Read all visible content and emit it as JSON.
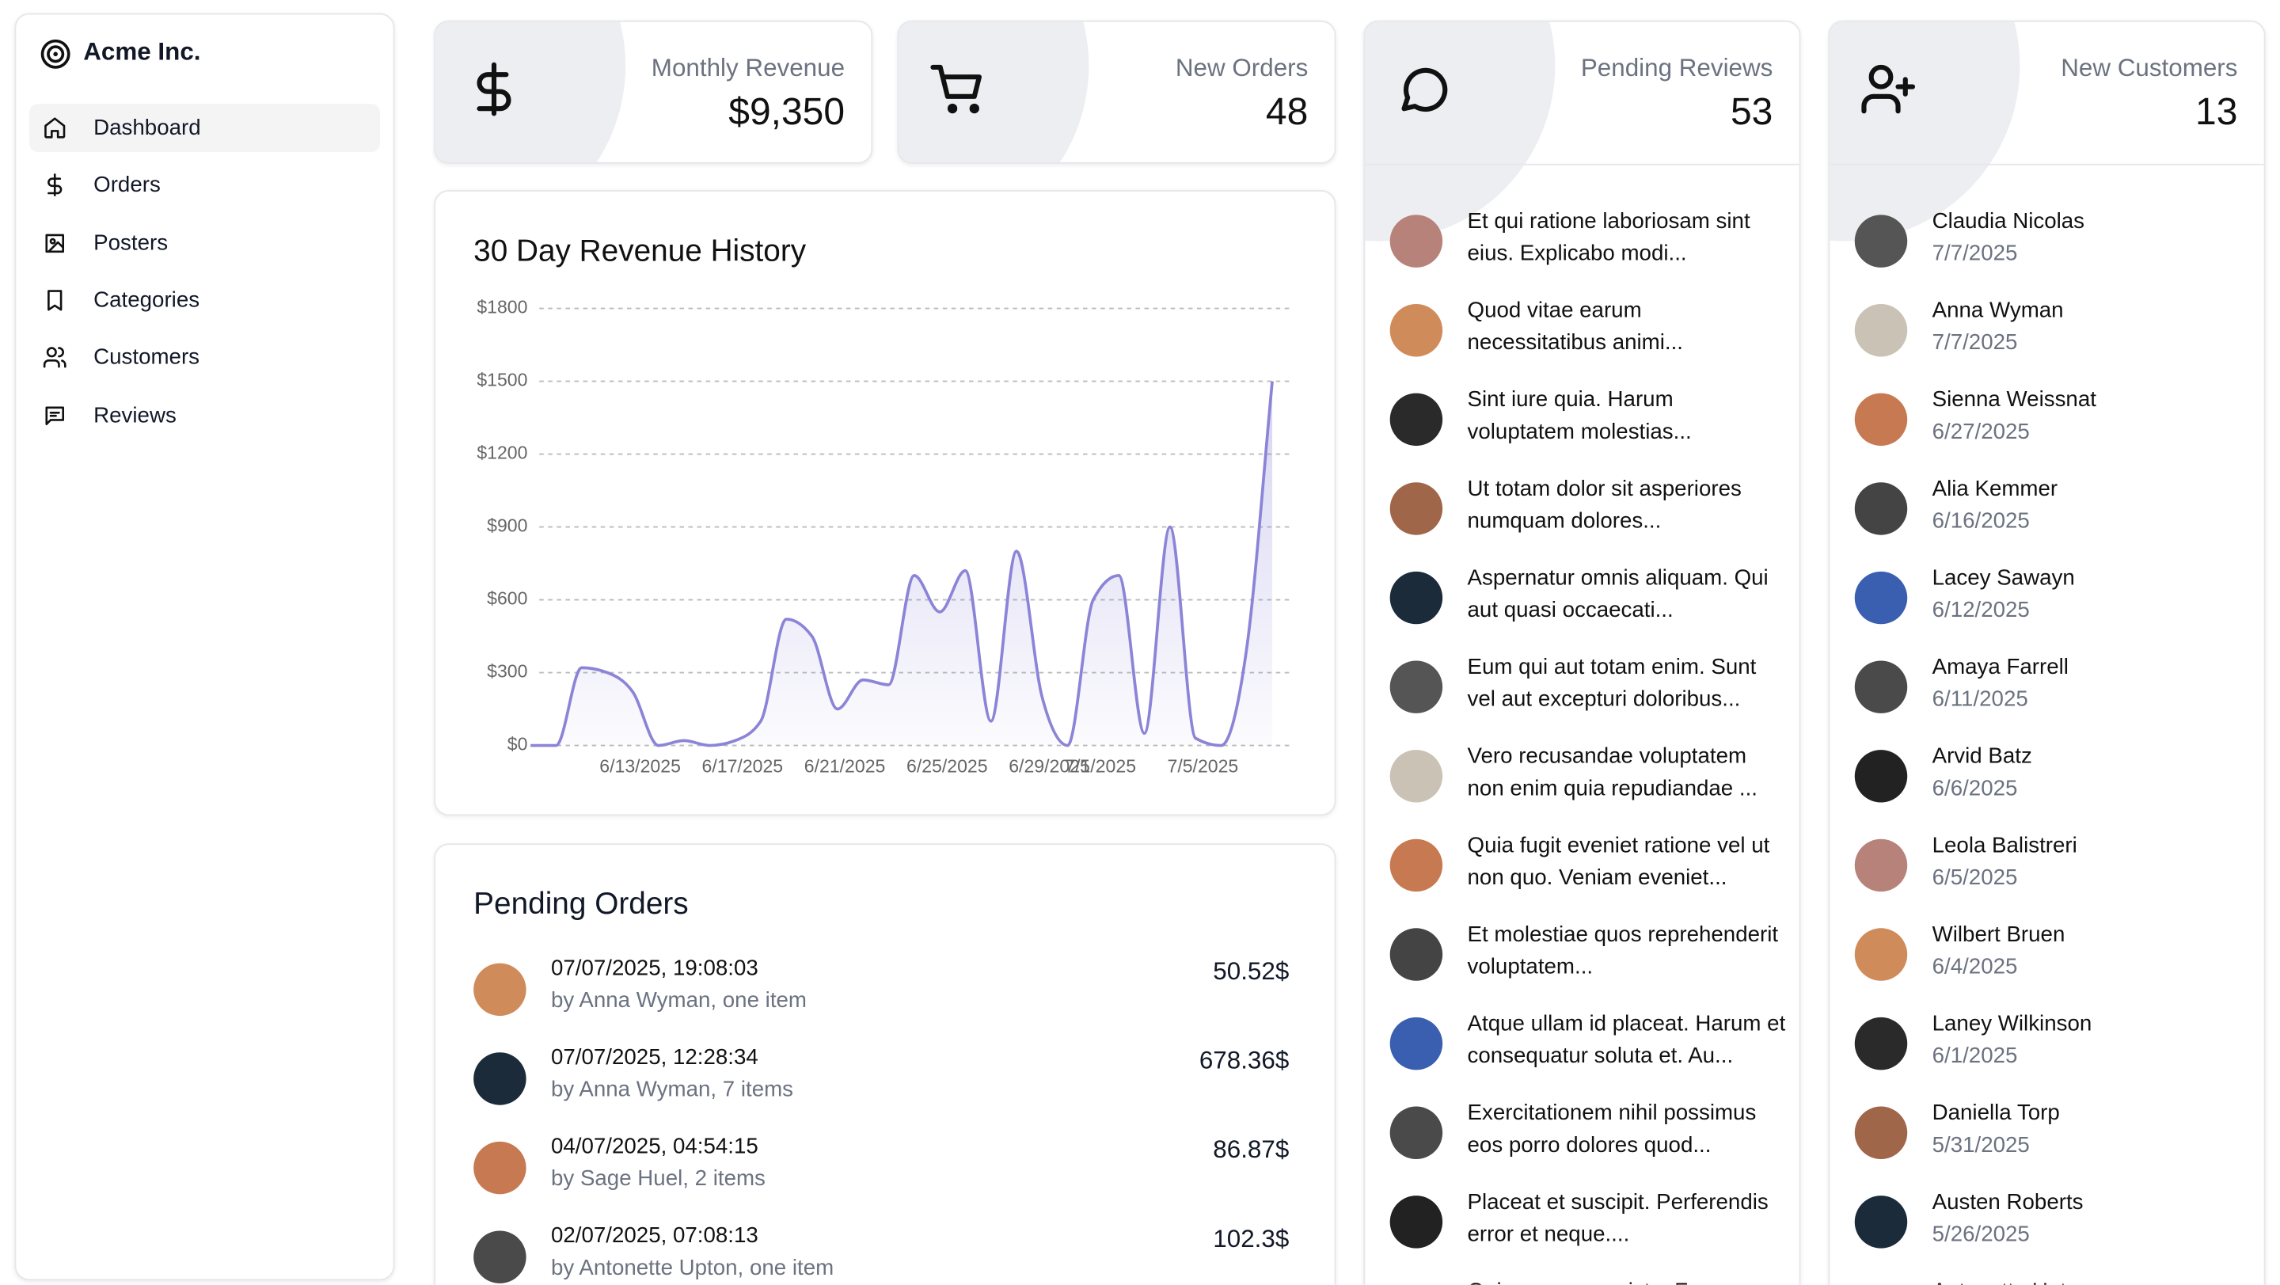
{
  "sidebar": {
    "brand": "Acme Inc.",
    "nav": [
      "Dashboard",
      "Orders",
      "Posters",
      "Categories",
      "Customers",
      "Reviews"
    ]
  },
  "stats": [
    {
      "label": "Monthly Revenue",
      "value": "$9,350"
    },
    {
      "label": "New Orders",
      "value": 48
    },
    {
      "label": "Pending Reviews",
      "value": 53
    },
    {
      "label": "New Customers",
      "value": 13
    }
  ],
  "chart_data": {
    "type": "area",
    "title": "30 Day Revenue History",
    "color": "#8b84d7",
    "grid": true,
    "categories": [
      null,
      null,
      null,
      null,
      "6/13/2025",
      null,
      null,
      null,
      "6/17/2025",
      null,
      null,
      null,
      "6/21/2025",
      null,
      null,
      null,
      "6/25/2025",
      null,
      null,
      null,
      "6/29/2025",
      null,
      "7/1/2025",
      null,
      null,
      null,
      "7/5/2025",
      null,
      null,
      null
    ],
    "values": [
      0,
      0,
      320,
      300,
      220,
      0,
      20,
      0,
      20,
      100,
      520,
      450,
      150,
      270,
      250,
      700,
      550,
      720,
      100,
      800,
      200,
      0,
      600,
      700,
      50,
      900,
      30,
      0,
      400,
      1500
    ],
    "ylim": [
      0,
      1800
    ],
    "yticks": [
      {
        "value": 0,
        "label": "$0"
      },
      {
        "value": 300,
        "label": "$300"
      },
      {
        "value": 600,
        "label": "$600"
      },
      {
        "value": 900,
        "label": "$900"
      },
      {
        "value": 1200,
        "label": "$1200"
      },
      {
        "value": 1500,
        "label": "$1500"
      },
      {
        "value": 1800,
        "label": "$1800"
      }
    ]
  },
  "pending_orders": {
    "title": "Pending Orders",
    "rows": [
      {
        "date": "07/07/2025, 19:08:03",
        "by": "by Anna Wyman, one item",
        "total": "50.52$"
      },
      {
        "date": "07/07/2025, 12:28:34",
        "by": "by Anna Wyman, 7 items",
        "total": "678.36$"
      },
      {
        "date": "04/07/2025, 04:54:15",
        "by": "by Sage Huel, 2 items",
        "total": "86.87$"
      },
      {
        "date": "02/07/2025, 07:08:13",
        "by": "by Antonette Upton, one item",
        "total": "102.3$"
      }
    ]
  },
  "reviews": [
    "Et qui ratione laboriosam sint eius. Explicabo modi...",
    "Quod vitae earum necessitatibus animi...",
    "Sint iure quia. Harum voluptatem molestias...",
    "Ut totam dolor sit asperiores numquam dolores...",
    "Aspernatur omnis aliquam. Qui aut quasi occaecati...",
    "Eum qui aut totam enim. Sunt vel aut excepturi doloribus...",
    "Vero recusandae voluptatem non enim quia repudiandae ...",
    "Quia fugit eveniet ratione vel ut non quo. Veniam eveniet...",
    "Et molestiae quos reprehenderit voluptatem...",
    "Atque ullam id placeat. Harum et consequatur soluta et. Au...",
    "Exercitationem nihil possimus eos porro dolores quod...",
    "Placeat et suscipit. Perferendis error et neque....",
    "Quia quam cum iste. Fuga"
  ],
  "customers": [
    {
      "name": "Claudia Nicolas",
      "date": "7/7/2025"
    },
    {
      "name": "Anna Wyman",
      "date": "7/7/2025"
    },
    {
      "name": "Sienna Weissnat",
      "date": "6/27/2025"
    },
    {
      "name": "Alia Kemmer",
      "date": "6/16/2025"
    },
    {
      "name": "Lacey Sawayn",
      "date": "6/12/2025"
    },
    {
      "name": "Amaya Farrell",
      "date": "6/11/2025"
    },
    {
      "name": "Arvid Batz",
      "date": "6/6/2025"
    },
    {
      "name": "Leola Balistreri",
      "date": "6/5/2025"
    },
    {
      "name": "Wilbert Bruen",
      "date": "6/4/2025"
    },
    {
      "name": "Laney Wilkinson",
      "date": "6/1/2025"
    },
    {
      "name": "Daniella Torp",
      "date": "5/31/2025"
    },
    {
      "name": "Austen Roberts",
      "date": "5/26/2025"
    },
    {
      "name": "Antonette Upton",
      "date": null
    }
  ]
}
